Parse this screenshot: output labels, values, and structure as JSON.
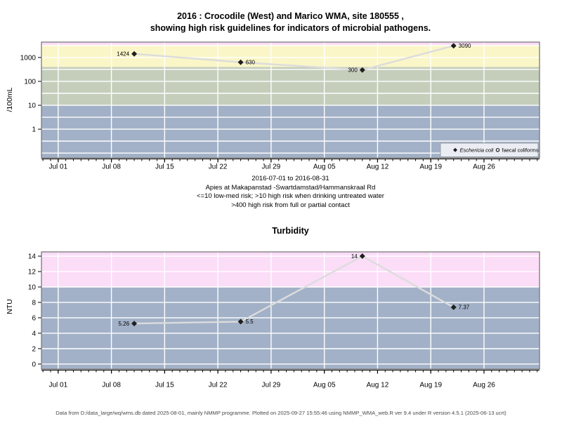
{
  "title": {
    "line1": "2016 : Crocodile (West) and Marico WMA, site 180555 ,",
    "line2": "showing high risk guidelines for indicators of microbial pathogens."
  },
  "caption": {
    "lines": [
      "2016-07-01 to 2016-08-31",
      "Apies at Makapanstad -Swartdamstad/Hammanskraal Rd",
      "<=10 low-med risk; >10 high risk when drinking untreated water",
      ">400 high risk from full or partial contact"
    ]
  },
  "turbidity_title": "Turbidity",
  "footer": "Data from D:/data_large/wq/wms.db dated 2025-08-01, mainly NMMP programme. Plotted on 2025-09-27 15:55:46 using NMMP_WMA_web.R ver 9.4 under R version 4.5.1 (2025-06-13 ucrt)",
  "colors": {
    "grid": "#ffffff",
    "series_line": "#dcdcdc",
    "point": "#1f1f1f",
    "panel_border": "#7a7a7a",
    "legend_fill": "#eaedf3",
    "legend_border": "#9aa0a8",
    "footer_text": "#4a4a4a"
  },
  "chart_data": [
    {
      "name": "microbial-pathogens",
      "type": "line",
      "ylabel": "/100mL",
      "yscale": "log",
      "ylim": [
        0.063,
        4400
      ],
      "xlim": [
        -2.2,
        63.3
      ],
      "yticks": [
        {
          "v": 1000,
          "label": "1000"
        },
        {
          "v": 100,
          "label": "100"
        },
        {
          "v": 10,
          "label": "10"
        },
        {
          "v": 1,
          "label": "1"
        }
      ],
      "grid_h": [
        3162,
        1000,
        316.2,
        100,
        31.62,
        10,
        3.162,
        1,
        0.3162,
        0.1
      ],
      "x_tick_days": [
        0,
        7,
        14,
        21,
        28,
        35,
        42,
        49,
        56
      ],
      "x_tick_labels": [
        "Jul 01",
        "Jul 08",
        "Jul 15",
        "Jul 22",
        "Jul 29",
        "Aug 05",
        "Aug 12",
        "Aug 19",
        "Aug 26"
      ],
      "bands": [
        {
          "from": 3350,
          "to": 4400,
          "color": "#fbddf8"
        },
        {
          "from": 400,
          "to": 3350,
          "color": "#faf6c8"
        },
        {
          "from": 10,
          "to": 400,
          "color": "#c5cebb"
        },
        {
          "from": 0.063,
          "to": 10,
          "color": "#a2b1c7"
        }
      ],
      "series": [
        {
          "name": "Eschericia coli",
          "marker": "filled-diamond",
          "points": [
            {
              "date": "2016-07-11",
              "day": 10,
              "value": 1424,
              "label": "1424",
              "label_side": "left"
            },
            {
              "date": "2016-07-25",
              "day": 24,
              "value": 630,
              "label": "630",
              "label_side": "right"
            },
            {
              "date": "2016-08-10",
              "day": 40,
              "value": 300,
              "label": "300",
              "label_side": "left"
            },
            {
              "date": "2016-08-22",
              "day": 52,
              "value": 3090,
              "label": "3090",
              "label_side": "right"
            }
          ]
        },
        {
          "name": "faecal coliforms",
          "marker": "open-circle",
          "points": []
        }
      ],
      "legend": {
        "position": "bottom-right",
        "entries": [
          {
            "label": "Eschericia coli",
            "marker": "filled-diamond",
            "italic": true
          },
          {
            "label": "faecal coliforms",
            "marker": "open-circle",
            "italic": false
          }
        ]
      }
    },
    {
      "name": "turbidity",
      "type": "line",
      "ylabel": "NTU",
      "yscale": "linear",
      "ylim": [
        -0.65,
        14.55
      ],
      "xlim": [
        -2.2,
        63.3
      ],
      "yticks": [
        {
          "v": 0,
          "label": "0"
        },
        {
          "v": 2,
          "label": "2"
        },
        {
          "v": 4,
          "label": "4"
        },
        {
          "v": 6,
          "label": "6"
        },
        {
          "v": 8,
          "label": "8"
        },
        {
          "v": 10,
          "label": "10"
        },
        {
          "v": 12,
          "label": "12"
        },
        {
          "v": 14,
          "label": "14"
        }
      ],
      "grid_h": [
        0,
        2,
        4,
        6,
        8,
        10,
        12,
        14
      ],
      "x_tick_days": [
        0,
        7,
        14,
        21,
        28,
        35,
        42,
        49,
        56
      ],
      "x_tick_labels": [
        "Jul 01",
        "Jul 08",
        "Jul 15",
        "Jul 22",
        "Jul 29",
        "Aug 05",
        "Aug 12",
        "Aug 19",
        "Aug 26"
      ],
      "bands": [
        {
          "from": 10,
          "to": 14.55,
          "color": "#fbddf8"
        },
        {
          "from": -0.65,
          "to": 10,
          "color": "#a2b1c7"
        }
      ],
      "series": [
        {
          "name": "Turbidity",
          "marker": "filled-diamond",
          "points": [
            {
              "date": "2016-07-11",
              "day": 10,
              "value": 5.26,
              "label": "5.26",
              "label_side": "left"
            },
            {
              "date": "2016-07-25",
              "day": 24,
              "value": 5.5,
              "label": "5.5",
              "label_side": "right"
            },
            {
              "date": "2016-08-10",
              "day": 40,
              "value": 14,
              "label": "14",
              "label_side": "left"
            },
            {
              "date": "2016-08-22",
              "day": 52,
              "value": 7.37,
              "label": "7.37",
              "label_side": "right"
            }
          ]
        }
      ]
    }
  ]
}
